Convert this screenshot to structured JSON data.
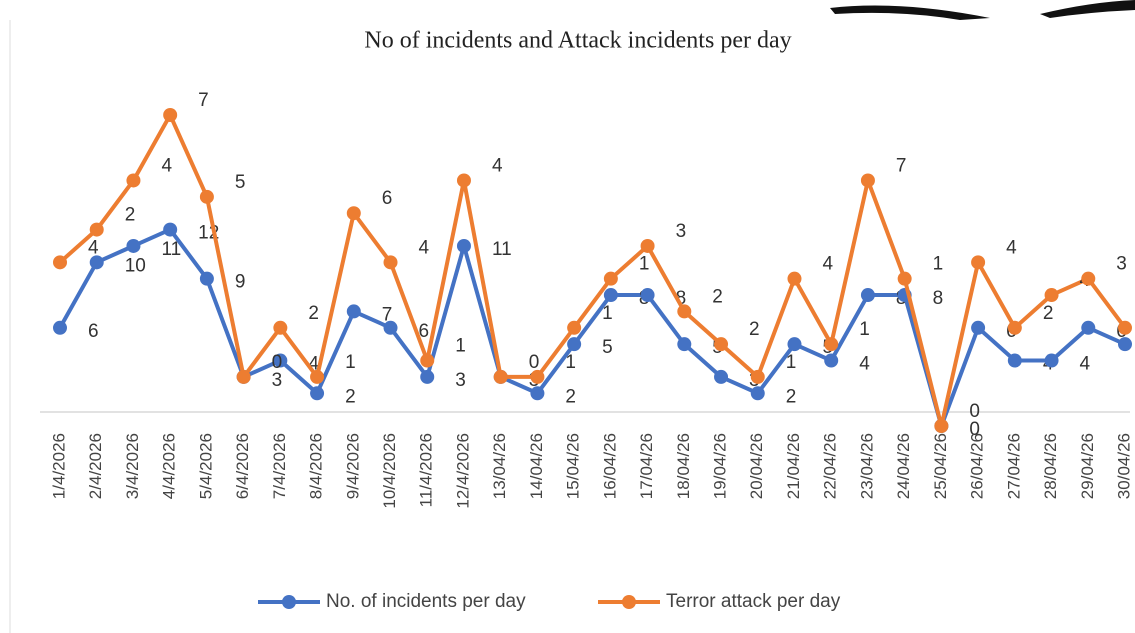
{
  "chart_data": {
    "type": "line",
    "stacked": true,
    "title": "No of incidents and Attack incidents per day",
    "categories": [
      "1/4/2026",
      "2/4/2026",
      "3/4/2026",
      "4/4/2026",
      "5/4/2026",
      "6/4/2026",
      "7/4/2026",
      "8/4/2026",
      "9/4/2026",
      "10/4/2026",
      "11/4/2026",
      "12/4/2026",
      "13/04/26",
      "14/04/26",
      "15/04/26",
      "16/04/26",
      "17/04/26",
      "18/04/26",
      "19/04/26",
      "20/04/26",
      "21/04/26",
      "22/04/26",
      "23/04/26",
      "24/04/26",
      "25/04/26",
      "26/04/26",
      "27/04/26",
      "28/04/26",
      "29/04/26",
      "30/04/26"
    ],
    "series": [
      {
        "name": "No. of incidents per day",
        "color": "#4472c4",
        "values": [
          6,
          10,
          11,
          12,
          9,
          3,
          4,
          2,
          7,
          6,
          3,
          11,
          3,
          2,
          5,
          8,
          8,
          5,
          3,
          2,
          5,
          4,
          8,
          8,
          0,
          6,
          4,
          4,
          6,
          5
        ]
      },
      {
        "name": "Terror attack per day",
        "color": "#ed7d31",
        "values": [
          4,
          2,
          4,
          7,
          5,
          0,
          2,
          1,
          6,
          4,
          1,
          4,
          0,
          1,
          1,
          1,
          3,
          2,
          2,
          1,
          4,
          1,
          7,
          1,
          0,
          4,
          2,
          4,
          3,
          1
        ]
      }
    ],
    "legend": "bottom"
  }
}
